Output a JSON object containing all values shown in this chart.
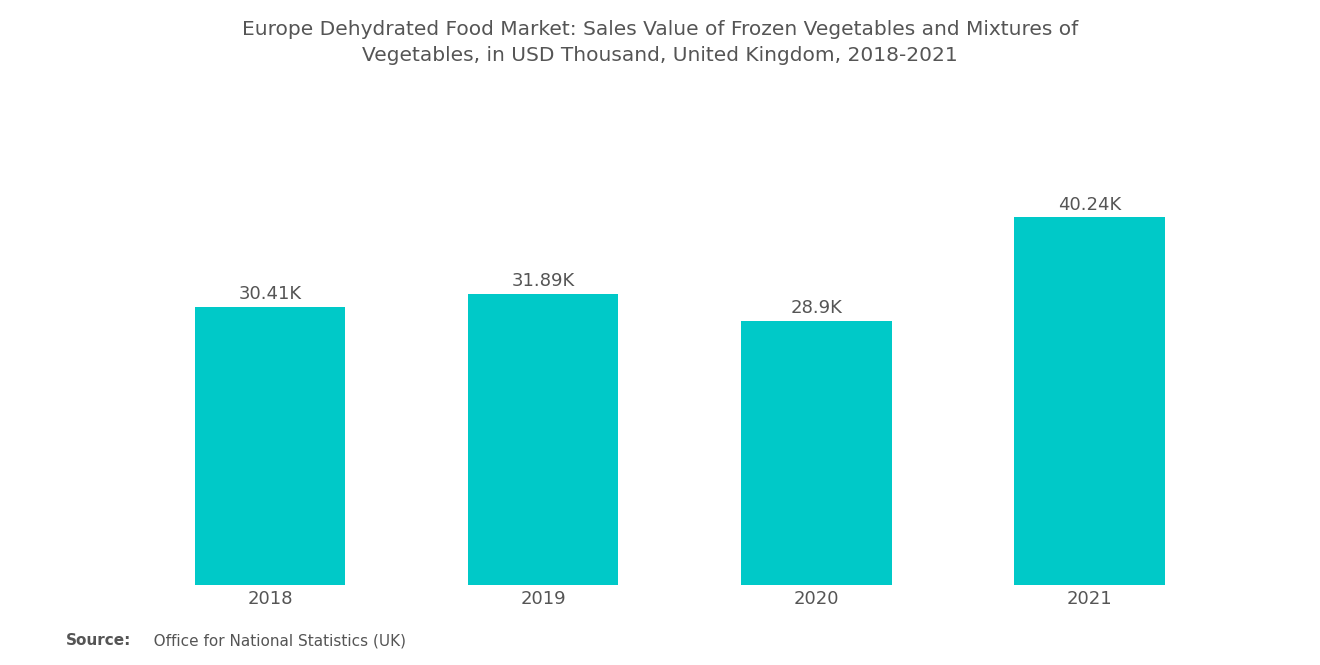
{
  "title_line1": "Europe Dehydrated Food Market: Sales Value of Frozen Vegetables and Mixtures of",
  "title_line2": "Vegetables, in USD Thousand, United Kingdom, 2018-2021",
  "categories": [
    "2018",
    "2019",
    "2020",
    "2021"
  ],
  "values": [
    30.41,
    31.89,
    28.9,
    40.24
  ],
  "labels": [
    "30.41K",
    "31.89K",
    "28.9K",
    "40.24K"
  ],
  "bar_color": "#00C9C8",
  "background_color": "#ffffff",
  "title_color": "#555555",
  "label_color": "#555555",
  "tick_color": "#555555",
  "source_bold": "Source:",
  "source_rest": "   Office for National Statistics (UK)",
  "ylim": [
    0,
    48
  ],
  "bar_width": 0.55,
  "title_fontsize": 14.5,
  "label_fontsize": 13,
  "tick_fontsize": 13,
  "source_fontsize": 11
}
